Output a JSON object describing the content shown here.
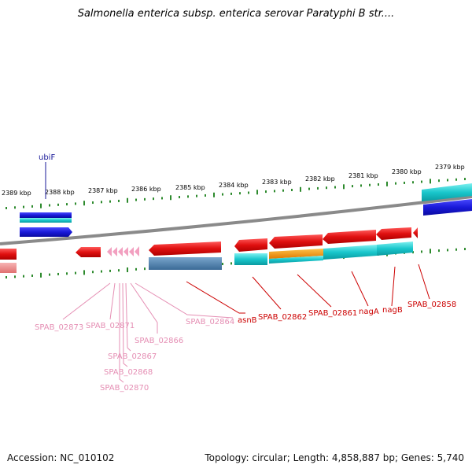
{
  "title": "Salmonella enterica subsp. enterica serovar Paratyphi B str....",
  "footer": {
    "accession": "Accession: NC_010102",
    "stats": "Topology: circular; Length: 4,858,887 bp; Genes: 5,740"
  },
  "ticks": [
    "2389 kbp",
    "2388 kbp",
    "2387 kbp",
    "2386 kbp",
    "2385 kbp",
    "2384 kbp",
    "2383 kbp",
    "2382 kbp",
    "2381 kbp",
    "2380 kbp",
    "2379 kbp"
  ],
  "gene_labels": {
    "ubiF": "ubiF",
    "spab_02873": "SPAB_02873",
    "spab_02871": "SPAB_02871",
    "spab_02866": "SPAB_02866",
    "spab_02867": "SPAB_02867",
    "spab_02868": "SPAB_02868",
    "spab_02870": "SPAB_02870",
    "spab_02864": "SPAB_02864",
    "asnB": "asnB",
    "spab_02862": "SPAB_02862",
    "spab_02861": "SPAB_02861",
    "nagA": "nagA",
    "nagB": "nagB",
    "spab_02858": "SPAB_02858"
  },
  "colors": {
    "forward_cds": "#1a1ad9",
    "forward_rna": "#19c7cc",
    "reverse_cds": "#e01010",
    "orange_feature": "#f59a12",
    "steel_feature": "#4a7aa6",
    "pseudo": "#f2a0c0",
    "backbone": "#8a8a8a",
    "ticks": "#2d8a2d"
  }
}
